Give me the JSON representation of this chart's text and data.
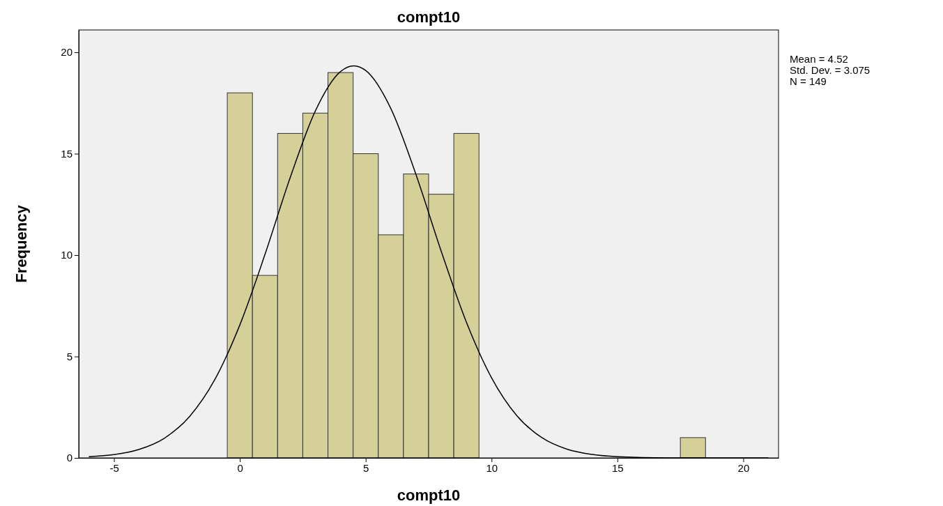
{
  "chart_data": {
    "type": "histogram",
    "title": "compt10",
    "xlabel": "compt10",
    "ylabel": "Frequency",
    "bins": [
      -0.5,
      0.5,
      1.5,
      2.5,
      3.5,
      4.5,
      5.5,
      6.5,
      7.5,
      8.5,
      9.5,
      10.5,
      11.5,
      12.5,
      13.5,
      14.5,
      15.5,
      16.5,
      17.5,
      18.5
    ],
    "values": [
      18,
      9,
      16,
      17,
      19,
      15,
      11,
      14,
      13,
      16,
      0,
      0,
      0,
      0,
      0,
      0,
      0,
      0,
      1
    ],
    "color": "#d5cf98",
    "series": [
      {
        "type": "line",
        "color": "#000000",
        "x": [
          -6,
          -5,
          -4,
          -3,
          -2,
          -1,
          0,
          1,
          2,
          3,
          4,
          4.52,
          5,
          6,
          7,
          8,
          9,
          10,
          11,
          12,
          13,
          14,
          15,
          17,
          21
        ],
        "values": [
          0.06,
          0.16,
          0.42,
          0.97,
          2.04,
          3.85,
          6.56,
          10.04,
          13.82,
          17.11,
          19.05,
          19.33,
          19.1,
          17.22,
          13.96,
          10.19,
          6.69,
          3.95,
          2.09,
          1.0,
          0.43,
          0.17,
          0.06,
          0,
          0
        ]
      }
    ],
    "xlim": [
      -6.4,
      21.4
    ],
    "xticks": [
      -5,
      0,
      5,
      10,
      15,
      20
    ],
    "ylim": [
      0,
      21.1
    ],
    "yticks": [
      0,
      5,
      10,
      15,
      20
    ],
    "grid": false,
    "marker": "none",
    "annotations": [
      "Mean = 4.52",
      "Std. Dev. = 3.075",
      "N = 149"
    ]
  }
}
